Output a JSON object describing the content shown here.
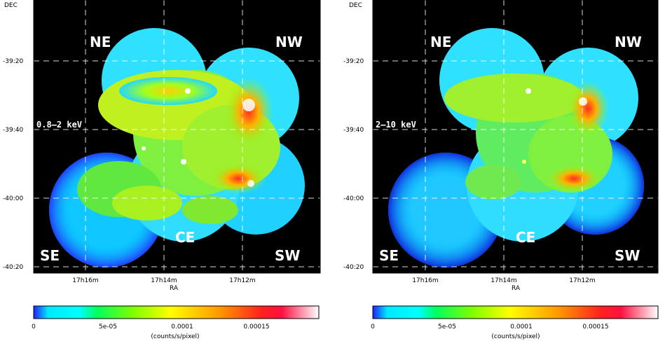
{
  "panels": [
    {
      "axis_corner_label": "DEC",
      "band_label": "0.8–2 keV",
      "region_labels": {
        "ne": "NE",
        "nw": "NW",
        "se": "SE",
        "sw": "SW",
        "ce": "CE"
      },
      "dec_ticks": [
        "-39:20",
        "-39:40",
        "-40:00",
        "-40:20"
      ],
      "ra_ticks": [
        "17h16m",
        "17h14m",
        "17h12m"
      ],
      "x_axis_label": "RA",
      "colorbar_ticks": [
        "0",
        "5e-05",
        "0.0001",
        "0.00015"
      ],
      "colorbar_label": "(counts/s/pixel)"
    },
    {
      "axis_corner_label": "DEC",
      "band_label": "2–10 keV",
      "region_labels": {
        "ne": "NE",
        "nw": "NW",
        "se": "SE",
        "sw": "SW",
        "ce": "CE"
      },
      "dec_ticks": [
        "-39:20",
        "-39:40",
        "-40:00",
        "-40:20"
      ],
      "ra_ticks": [
        "17h16m",
        "17h14m",
        "17h12m"
      ],
      "x_axis_label": "RA",
      "colorbar_ticks": [
        "0",
        "5e-05",
        "0.0001",
        "0.00015"
      ],
      "colorbar_label": "(counts/s/pixel)"
    }
  ],
  "colors": {
    "background": "#000000",
    "low": "#1a1aff",
    "mid_low": "#00e0ff",
    "mid": "#00e000",
    "mid_high": "#ffff00",
    "high": "#ff6600",
    "peak": "#ff0040",
    "max": "#ffffff"
  }
}
